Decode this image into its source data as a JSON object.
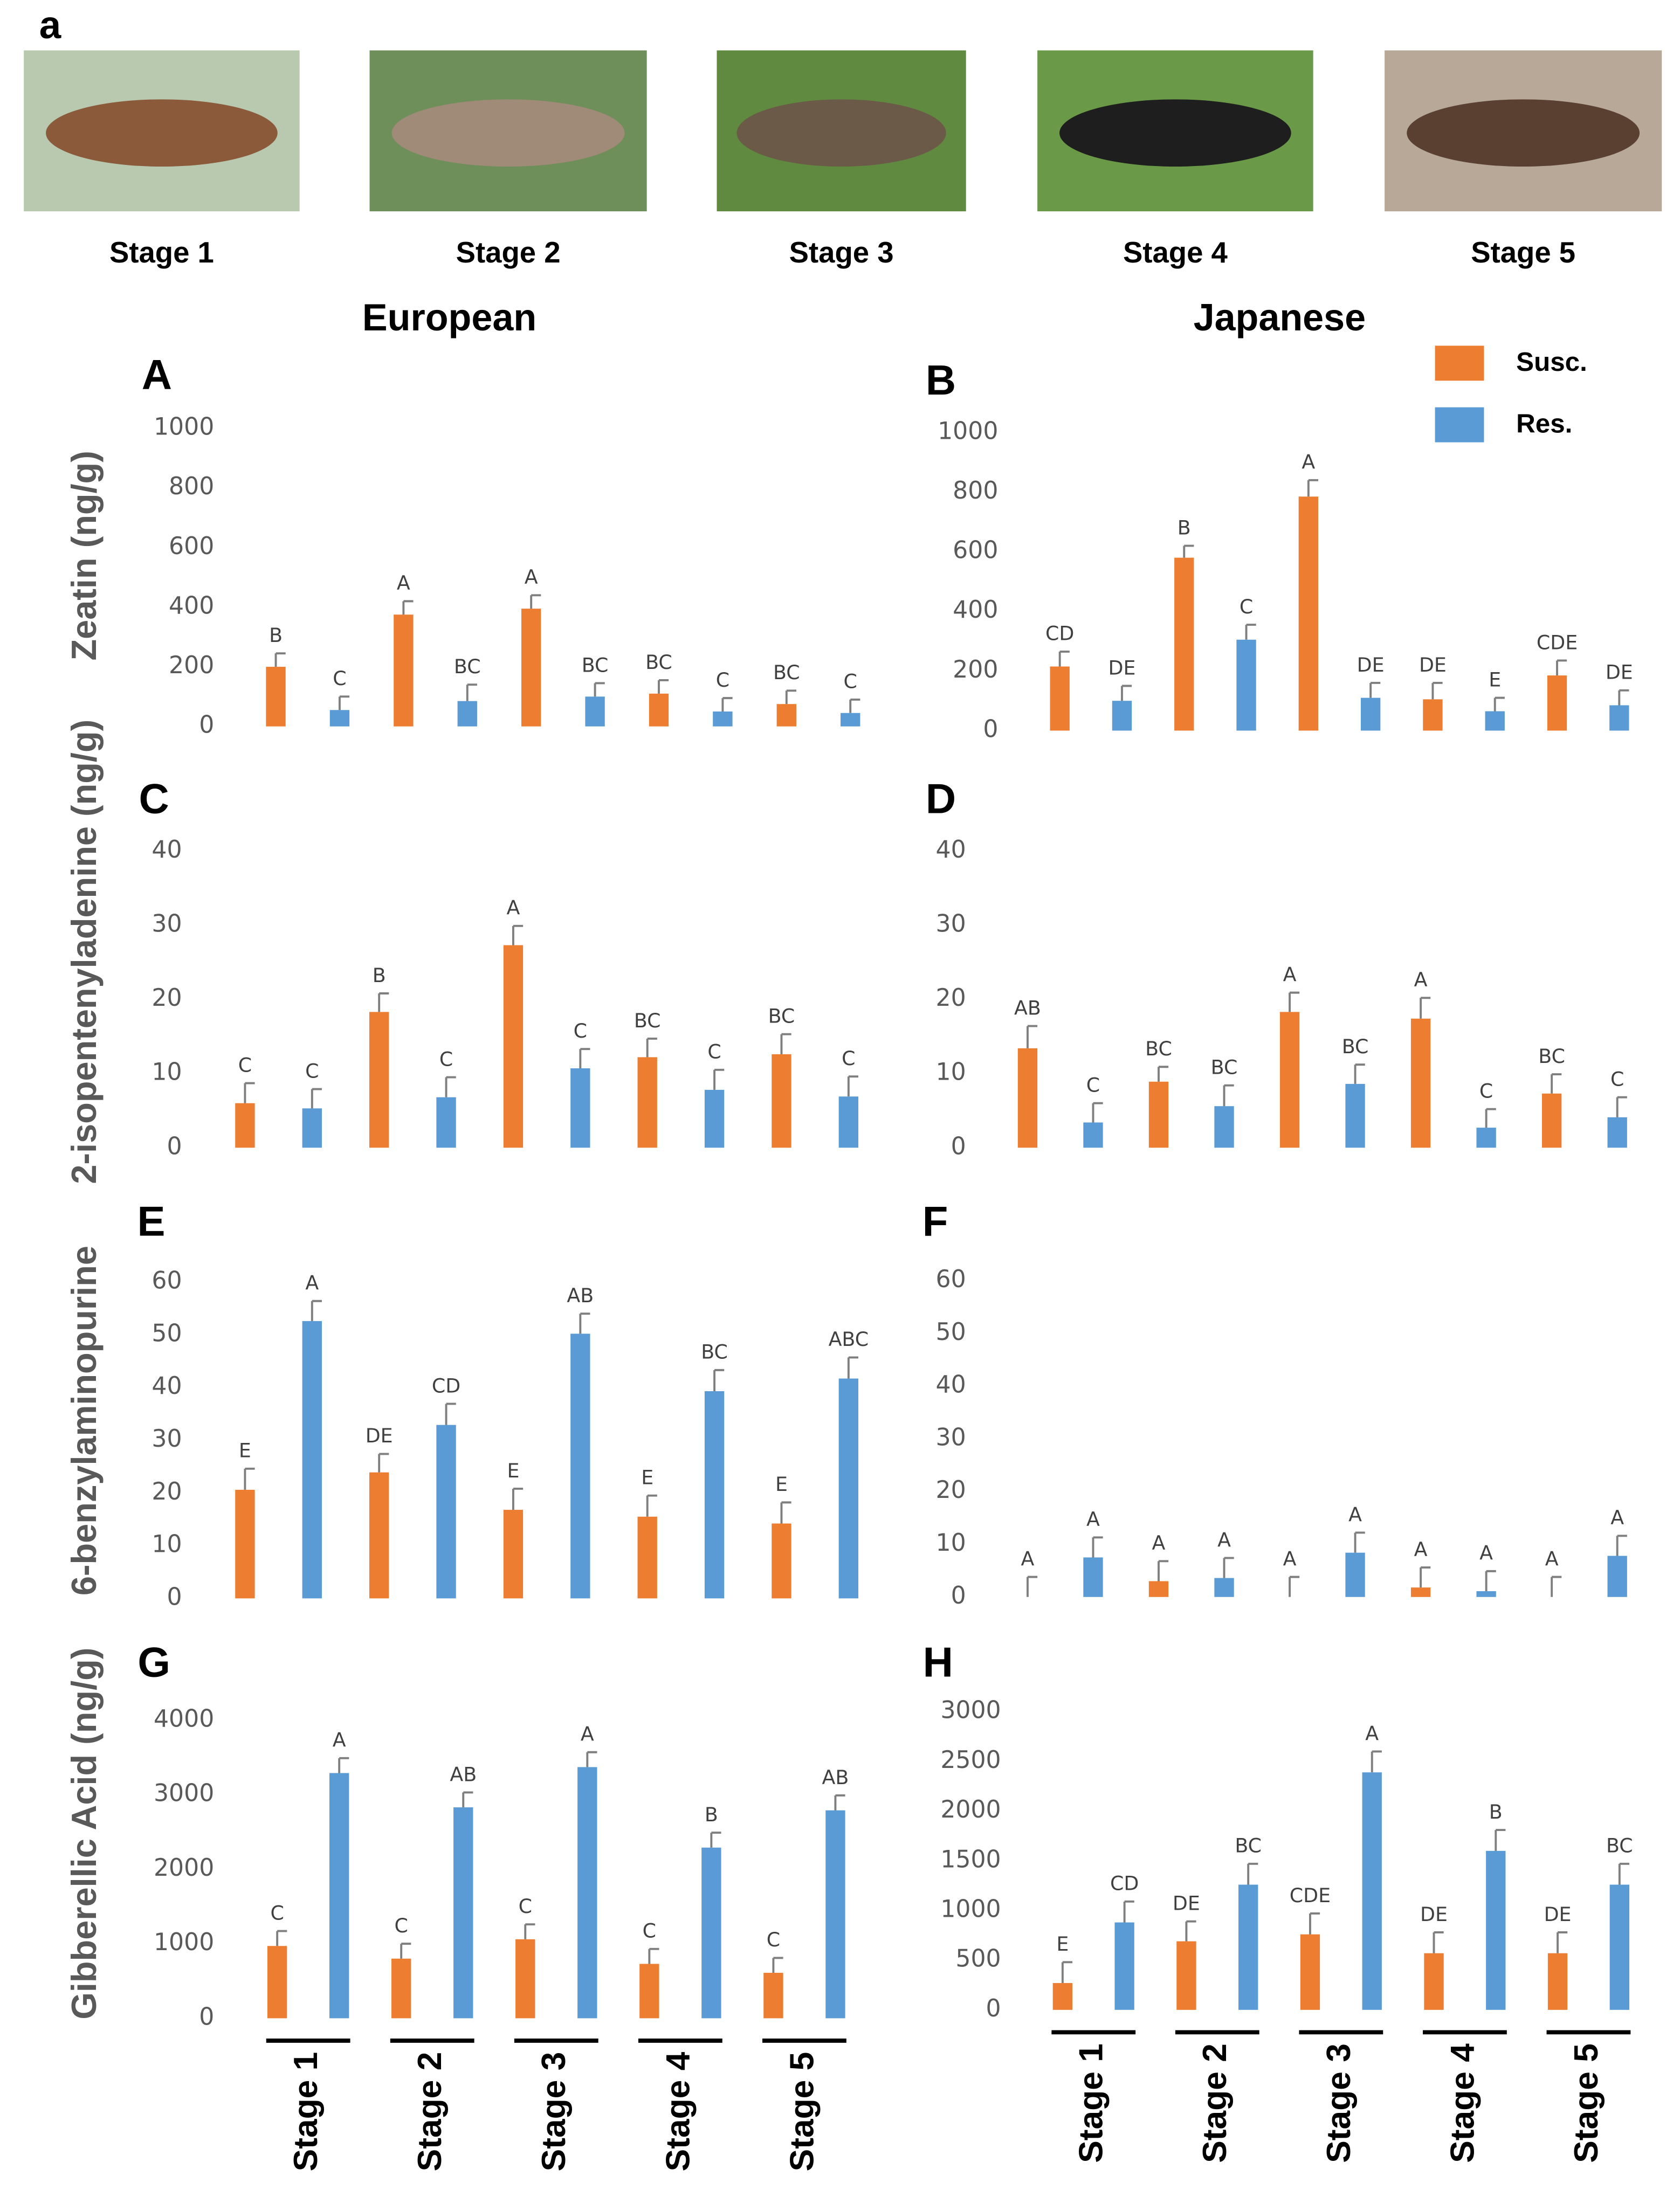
{
  "figure_label": "a",
  "images": [
    {
      "caption": "Stage 1"
    },
    {
      "caption": "Stage 2"
    },
    {
      "caption": "Stage 3"
    },
    {
      "caption": "Stage 4"
    },
    {
      "caption": "Stage 5"
    }
  ],
  "column_titles": [
    "European",
    "Japanese"
  ],
  "chart_data": [
    {
      "type": "bar",
      "panel": "A",
      "ylabel": "Zeatin (ng/g)",
      "ylim": [
        0,
        1000
      ],
      "yticks": [
        0,
        200,
        400,
        600,
        800,
        1000
      ],
      "series": [
        {
          "color": "#ed7d31",
          "values": [
            200,
            375,
            395,
            110,
            75
          ],
          "errors": [
            45,
            45,
            45,
            45,
            45
          ],
          "significance": [
            "B",
            "A",
            "A",
            "BC",
            "BC"
          ]
        },
        {
          "color": "#5b9bd5",
          "values": [
            55,
            85,
            100,
            50,
            45
          ],
          "errors": [
            45,
            55,
            45,
            45,
            45
          ],
          "significance": [
            "C",
            "BC",
            "BC",
            "C",
            "C"
          ]
        }
      ]
    },
    {
      "type": "bar",
      "panel": "B",
      "ylim": [
        0,
        1000
      ],
      "yticks": [
        0,
        200,
        400,
        600,
        800,
        1000
      ],
      "series": [
        {
          "name": "Susc.",
          "color": "#ed7d31",
          "values": [
            215,
            580,
            785,
            105,
            185
          ],
          "errors": [
            50,
            40,
            55,
            55,
            50
          ],
          "significance": [
            "CD",
            "B",
            "A",
            "DE",
            "CDE"
          ]
        },
        {
          "name": "Res.",
          "color": "#5b9bd5",
          "values": [
            100,
            305,
            110,
            65,
            85
          ],
          "errors": [
            50,
            50,
            50,
            45,
            50
          ],
          "significance": [
            "DE",
            "C",
            "DE",
            "E",
            "DE"
          ]
        }
      ]
    },
    {
      "type": "bar",
      "panel": "C",
      "ylabel": "2-isopentenyladenine (ng/g)",
      "ylim": [
        0,
        40
      ],
      "yticks": [
        0,
        10,
        20,
        30,
        40
      ],
      "series": [
        {
          "color": "#ed7d31",
          "values": [
            6,
            18.3,
            27.3,
            12.2,
            12.6
          ],
          "errors": [
            2.7,
            2.5,
            2.6,
            2.5,
            2.7
          ],
          "significance": [
            "C",
            "B",
            "A",
            "BC",
            "BC"
          ]
        },
        {
          "color": "#5b9bd5",
          "values": [
            5.3,
            6.8,
            10.7,
            7.8,
            6.9
          ],
          "errors": [
            2.6,
            2.7,
            2.6,
            2.7,
            2.7
          ],
          "significance": [
            "C",
            "C",
            "C",
            "C",
            "C"
          ]
        }
      ]
    },
    {
      "type": "bar",
      "panel": "D",
      "ylim": [
        0,
        40
      ],
      "yticks": [
        0,
        10,
        20,
        30,
        40
      ],
      "series": [
        {
          "color": "#ed7d31",
          "values": [
            13.4,
            8.9,
            18.3,
            17.4,
            7.3
          ],
          "errors": [
            3,
            2,
            2.6,
            2.8,
            2.6
          ],
          "significance": [
            "AB",
            "BC",
            "A",
            "A",
            "BC"
          ]
        },
        {
          "color": "#5b9bd5",
          "values": [
            3.4,
            5.6,
            8.6,
            2.7,
            4.1
          ],
          "errors": [
            2.6,
            2.8,
            2.6,
            2.5,
            2.7
          ],
          "significance": [
            "C",
            "BC",
            "BC",
            "C",
            "C"
          ]
        }
      ]
    },
    {
      "type": "bar",
      "panel": "E",
      "ylabel": "6-benzylaminopurine",
      "ylim": [
        0,
        60
      ],
      "yticks": [
        0,
        10,
        20,
        30,
        40,
        50,
        60
      ],
      "series": [
        {
          "color": "#ed7d31",
          "values": [
            20.6,
            23.9,
            16.8,
            15.5,
            14.2
          ],
          "errors": [
            4,
            3.5,
            4,
            4,
            4
          ],
          "significance": [
            "E",
            "DE",
            "E",
            "E",
            "E"
          ]
        },
        {
          "color": "#5b9bd5",
          "values": [
            52.6,
            32.9,
            50.2,
            39.3,
            41.7
          ],
          "errors": [
            3.8,
            4,
            3.8,
            4,
            4
          ],
          "significance": [
            "A",
            "CD",
            "AB",
            "BC",
            "ABC"
          ]
        }
      ]
    },
    {
      "type": "bar",
      "panel": "F",
      "ylim": [
        0,
        60
      ],
      "yticks": [
        0,
        10,
        20,
        30,
        40,
        50,
        60
      ],
      "series": [
        {
          "color": "#ed7d31",
          "values": [
            0,
            3,
            0,
            1.8,
            0
          ],
          "errors": [
            3.8,
            3.8,
            3.8,
            3.8,
            3.8
          ],
          "significance": [
            "A",
            "A",
            "A",
            "A",
            "A"
          ]
        },
        {
          "color": "#5b9bd5",
          "values": [
            7.5,
            3.6,
            8.4,
            1.1,
            7.8
          ],
          "errors": [
            3.8,
            3.8,
            3.8,
            3.8,
            3.8
          ],
          "significance": [
            "A",
            "A",
            "A",
            "A",
            "A"
          ]
        }
      ]
    },
    {
      "type": "bar",
      "panel": "G",
      "ylabel": "Gibberellic Acid (ng/g)",
      "ylim": [
        0,
        4000
      ],
      "yticks": [
        0,
        1000,
        2000,
        3000,
        4000
      ],
      "categories": [
        "Stage 1",
        "Stage 2",
        "Stage 3",
        "Stage 4",
        "Stage 5"
      ],
      "series": [
        {
          "color": "#ed7d31",
          "values": [
            970,
            800,
            1060,
            730,
            610
          ],
          "errors": [
            200,
            200,
            200,
            200,
            200
          ],
          "significance": [
            "C",
            "C",
            "C",
            "C",
            "C"
          ]
        },
        {
          "color": "#5b9bd5",
          "values": [
            3290,
            2830,
            3370,
            2290,
            2790
          ],
          "errors": [
            200,
            200,
            200,
            200,
            200
          ],
          "significance": [
            "A",
            "AB",
            "A",
            "B",
            "AB"
          ]
        }
      ]
    },
    {
      "type": "bar",
      "panel": "H",
      "ylim": [
        0,
        3000
      ],
      "yticks": [
        0,
        500,
        1000,
        1500,
        2000,
        2500,
        3000
      ],
      "categories": [
        "Stage 1",
        "Stage 2",
        "Stage 3",
        "Stage 4",
        "Stage 5"
      ],
      "series": [
        {
          "color": "#ed7d31",
          "values": [
            270,
            690,
            760,
            570,
            570
          ],
          "errors": [
            210,
            200,
            210,
            210,
            210
          ],
          "significance": [
            "E",
            "DE",
            "CDE",
            "DE",
            "DE"
          ]
        },
        {
          "color": "#5b9bd5",
          "values": [
            880,
            1260,
            2390,
            1600,
            1260
          ],
          "errors": [
            210,
            210,
            210,
            210,
            210
          ],
          "significance": [
            "CD",
            "BC",
            "A",
            "B",
            "BC"
          ]
        }
      ]
    }
  ]
}
